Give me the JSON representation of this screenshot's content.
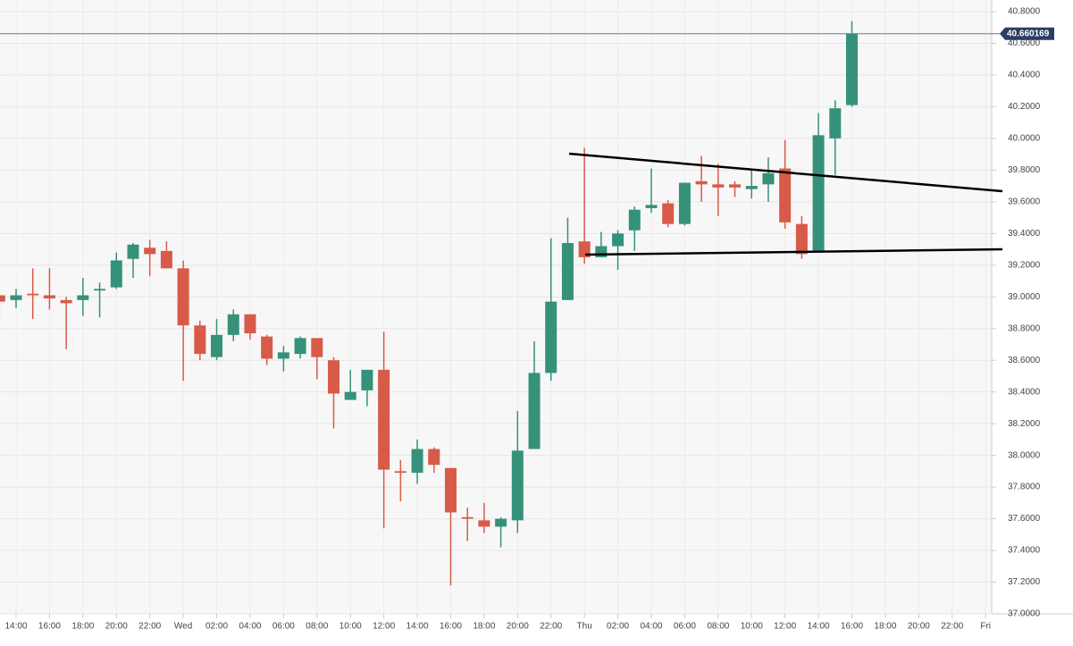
{
  "chart_data": {
    "type": "candlestick",
    "categories": [
      null,
      "14:00",
      null,
      "16:00",
      null,
      "18:00",
      null,
      "20:00",
      null,
      "22:00",
      null,
      "Wed",
      null,
      "02:00",
      null,
      "04:00",
      null,
      "06:00",
      null,
      "08:00",
      null,
      "10:00",
      null,
      "12:00",
      null,
      "14:00",
      null,
      "16:00",
      null,
      "18:00",
      null,
      "20:00",
      null,
      "22:00",
      null,
      "Thu",
      null,
      "02:00",
      null,
      "04:00",
      null,
      "06:00",
      null,
      "08:00",
      null,
      "10:00",
      null,
      "12:00",
      null,
      "14:00",
      null,
      "16:00",
      null,
      "18:00",
      null,
      "20:00",
      null,
      "22:00",
      null,
      "Fri"
    ],
    "open": [
      39.01,
      38.98,
      39.02,
      39.01,
      38.98,
      38.98,
      39.04,
      39.06,
      39.24,
      39.31,
      39.29,
      39.18,
      38.82,
      38.62,
      38.76,
      38.89,
      38.75,
      38.61,
      38.64,
      38.74,
      38.6,
      38.35,
      38.41,
      38.54,
      37.9,
      37.89,
      38.04,
      37.92,
      37.61,
      37.59,
      37.55,
      37.59,
      38.04,
      38.52,
      38.98,
      39.35,
      39.25,
      39.32,
      39.42,
      39.56,
      39.59,
      39.46,
      39.73,
      39.71,
      39.71,
      39.68,
      39.71,
      39.81,
      39.46,
      39.28,
      40.0,
      40.21,
      null,
      null,
      null,
      null,
      null,
      null,
      null,
      null
    ],
    "high": [
      39.05,
      39.05,
      39.18,
      39.18,
      39.0,
      39.12,
      39.09,
      39.28,
      39.34,
      39.36,
      39.35,
      39.23,
      38.85,
      38.86,
      38.92,
      38.89,
      38.76,
      38.69,
      38.75,
      38.74,
      38.62,
      38.54,
      38.54,
      38.78,
      37.97,
      38.1,
      38.05,
      37.92,
      37.67,
      37.7,
      37.61,
      38.28,
      38.72,
      39.37,
      39.5,
      39.94,
      39.41,
      39.42,
      39.57,
      39.81,
      39.61,
      39.72,
      39.89,
      39.84,
      39.73,
      39.8,
      39.88,
      39.99,
      39.51,
      40.16,
      40.24,
      40.74,
      null,
      null,
      null,
      null,
      null,
      null,
      null,
      null
    ],
    "low": [
      38.85,
      38.93,
      38.86,
      38.92,
      38.67,
      38.88,
      38.87,
      39.05,
      39.12,
      39.13,
      39.18,
      38.47,
      38.6,
      38.6,
      38.72,
      38.73,
      38.57,
      38.53,
      38.61,
      38.48,
      38.17,
      38.35,
      38.31,
      37.54,
      37.71,
      37.82,
      37.89,
      37.18,
      37.46,
      37.51,
      37.42,
      37.51,
      38.04,
      38.47,
      38.98,
      39.21,
      39.25,
      39.17,
      39.29,
      39.53,
      39.44,
      39.45,
      39.6,
      39.51,
      39.63,
      39.62,
      39.6,
      39.43,
      39.24,
      39.28,
      39.77,
      40.2,
      null,
      null,
      null,
      null,
      null,
      null,
      null,
      null
    ],
    "close": [
      38.97,
      39.01,
      39.01,
      38.99,
      38.96,
      39.01,
      39.05,
      39.23,
      39.33,
      39.27,
      39.18,
      38.82,
      38.64,
      38.76,
      38.89,
      38.77,
      38.61,
      38.65,
      38.74,
      38.62,
      38.39,
      38.4,
      38.54,
      37.91,
      37.89,
      38.04,
      37.94,
      37.64,
      37.6,
      37.55,
      37.6,
      38.03,
      38.52,
      38.97,
      39.34,
      39.25,
      39.32,
      39.4,
      39.55,
      39.58,
      39.46,
      39.72,
      39.71,
      39.69,
      39.69,
      39.7,
      39.78,
      39.47,
      39.27,
      40.02,
      40.19,
      40.66,
      null,
      null,
      null,
      null,
      null,
      null,
      null,
      null
    ],
    "up_color": "#35917a",
    "down_color": "#d85a48",
    "last_price": {
      "value": 40.660169,
      "label": "40.660169"
    },
    "ylim": [
      37,
      40.8
    ],
    "yticks": [
      {
        "value": 37,
        "label": "37.0000"
      },
      {
        "value": 37.2,
        "label": "37.2000"
      },
      {
        "value": 37.4,
        "label": "37.4000"
      },
      {
        "value": 37.6,
        "label": "37.6000"
      },
      {
        "value": 37.8,
        "label": "37.8000"
      },
      {
        "value": 38,
        "label": "38.0000"
      },
      {
        "value": 38.2,
        "label": "38.2000"
      },
      {
        "value": 38.4,
        "label": "38.4000"
      },
      {
        "value": 38.6,
        "label": "38.6000"
      },
      {
        "value": 38.8,
        "label": "38.8000"
      },
      {
        "value": 39,
        "label": "39.0000"
      },
      {
        "value": 39.2,
        "label": "39.2000"
      },
      {
        "value": 39.4,
        "label": "39.4000"
      },
      {
        "value": 39.6,
        "label": "39.6000"
      },
      {
        "value": 39.8,
        "label": "39.8000"
      },
      {
        "value": 40,
        "label": "40.0000"
      },
      {
        "value": 40.2,
        "label": "40.2000"
      },
      {
        "value": 40.4,
        "label": "40.4000"
      },
      {
        "value": 40.6,
        "label": "40.6000"
      },
      {
        "value": 40.8,
        "label": "40.8000"
      }
    ],
    "grid": true
  }
}
